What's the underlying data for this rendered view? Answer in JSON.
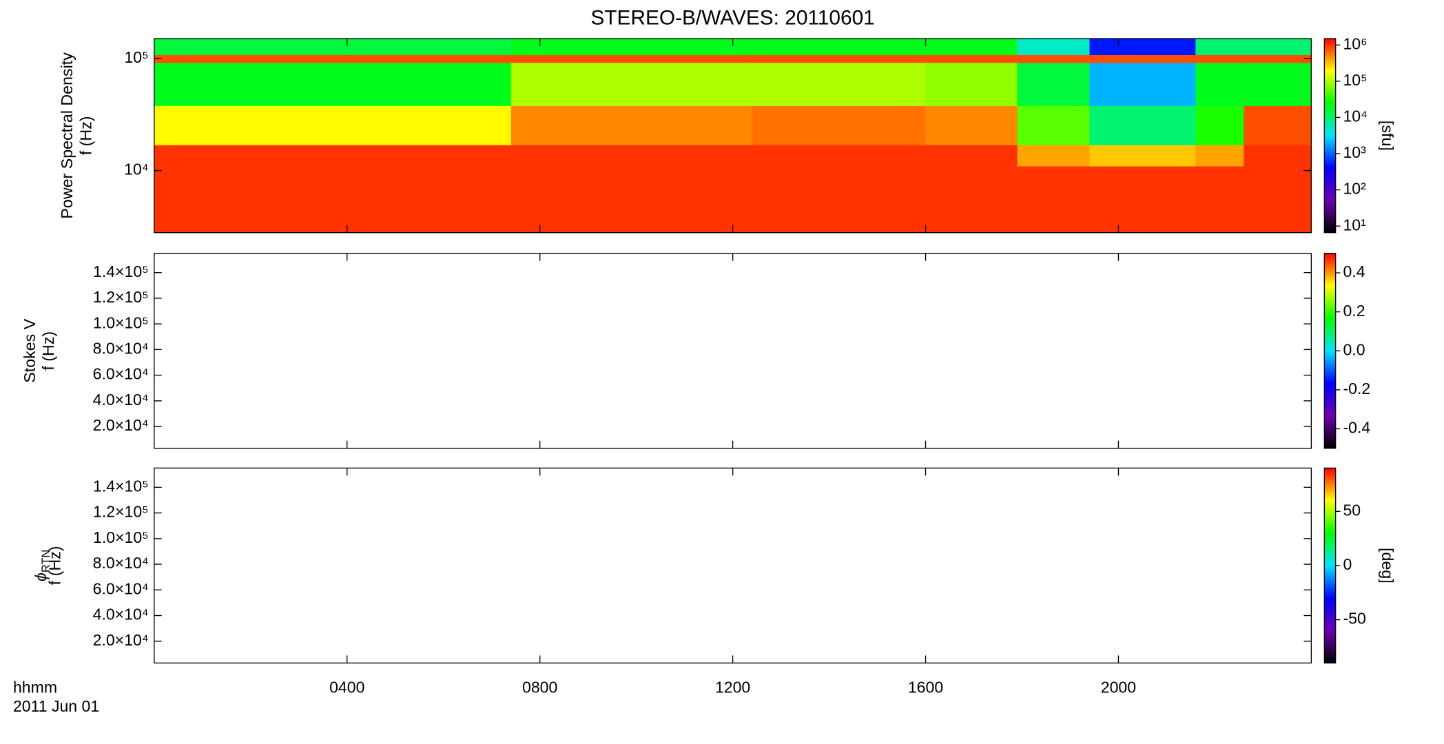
{
  "chart_data": [
    {
      "type": "heatmap",
      "title": "STEREO-B/WAVES: 20110601",
      "ylabel": [
        "Power Spectral Density",
        "f (Hz)"
      ],
      "x_edges": [
        0,
        7.4,
        12.4,
        16,
        17.9,
        19.4,
        21.6,
        22.6,
        24
      ],
      "y_edges": [
        2800,
        8000,
        11000,
        17000,
        38000,
        92000,
        108000,
        150000
      ],
      "z": [
        [
          1000000,
          1000000,
          1000000,
          1000000,
          1000000,
          1000000,
          1000000,
          1000000
        ],
        [
          1000000,
          1000000,
          1000000,
          1000000,
          1000000,
          1000000,
          1000000,
          1000000
        ],
        [
          1000000,
          1000000,
          1000000,
          1000000,
          400000,
          300000,
          400000,
          1000000
        ],
        [
          200000,
          500000,
          600000,
          500000,
          50000,
          10000,
          30000,
          800000
        ],
        [
          20000,
          100000,
          100000,
          80000,
          15000,
          2000,
          20000,
          20000
        ],
        [
          800000,
          800000,
          800000,
          800000,
          800000,
          800000,
          800000,
          800000
        ],
        [
          15000,
          20000,
          20000,
          20000,
          5000,
          500,
          10000,
          10000
        ]
      ],
      "ylog": true,
      "ylim": [
        2800,
        150000
      ],
      "yticks": [
        {
          "value": 10000,
          "label": "10⁴"
        },
        {
          "value": 100000,
          "label": "10⁵"
        }
      ],
      "zlog": true,
      "zlim": [
        6.6,
        1500000
      ],
      "zticks": [
        {
          "value": 10,
          "label": "10¹"
        },
        {
          "value": 100,
          "label": "10²"
        },
        {
          "value": 1000,
          "label": "10³"
        },
        {
          "value": 10000,
          "label": "10⁴"
        },
        {
          "value": 100000,
          "label": "10⁵"
        },
        {
          "value": 1000000,
          "label": "10⁶"
        }
      ],
      "zlabel": "[sfu]",
      "colormap": [
        "#000000",
        "#7000b0",
        "#0000ff",
        "#00e5ff",
        "#00ff00",
        "#ffff00",
        "#ff0000"
      ]
    },
    {
      "type": "heatmap",
      "ylabel": [
        "Stokes V",
        "f (Hz)"
      ],
      "ylog": false,
      "ylim": [
        3000,
        155000
      ],
      "yticks": [
        {
          "value": 20000,
          "label": "2.0×10⁴"
        },
        {
          "value": 40000,
          "label": "4.0×10⁴"
        },
        {
          "value": 60000,
          "label": "6.0×10⁴"
        },
        {
          "value": 80000,
          "label": "8.0×10⁴"
        },
        {
          "value": 100000,
          "label": "1.0×10⁵"
        },
        {
          "value": 120000,
          "label": "1.2×10⁵"
        },
        {
          "value": 140000,
          "label": "1.4×10⁵"
        }
      ],
      "zlog": false,
      "zlim": [
        -0.5,
        0.5
      ],
      "zticks": [
        -0.4,
        -0.2,
        {
          "value": 0,
          "label": "0.0"
        },
        0.2,
        0.4
      ],
      "colormap": [
        "#000000",
        "#7000b0",
        "#0000ff",
        "#00e5ff",
        "#00ff00",
        "#ffff00",
        "#ff0000"
      ]
    },
    {
      "type": "heatmap",
      "ylabel": [
        "ϕ",
        "RTN",
        "f (Hz)"
      ],
      "ylog": false,
      "ylim": [
        3000,
        155000
      ],
      "yticks": [
        {
          "value": 20000,
          "label": "2.0×10⁴"
        },
        {
          "value": 40000,
          "label": "4.0×10⁴"
        },
        {
          "value": 60000,
          "label": "6.0×10⁴"
        },
        {
          "value": 80000,
          "label": "8.0×10⁴"
        },
        {
          "value": 100000,
          "label": "1.0×10⁵"
        },
        {
          "value": 120000,
          "label": "1.2×10⁵"
        },
        {
          "value": 140000,
          "label": "1.4×10⁵"
        }
      ],
      "zlog": false,
      "zlim": [
        -90,
        90
      ],
      "zticks": [
        -50,
        0,
        50
      ],
      "zlabel": "[deg]",
      "xlim": [
        0,
        24
      ],
      "xticks": [
        {
          "value": 4,
          "label": "0400"
        },
        {
          "value": 8,
          "label": "0800"
        },
        {
          "value": 12,
          "label": "1200"
        },
        {
          "value": 16,
          "label": "1600"
        },
        {
          "value": 20,
          "label": "2000"
        }
      ],
      "colormap": [
        "#000000",
        "#7000b0",
        "#0000ff",
        "#00e5ff",
        "#00ff00",
        "#ffff00",
        "#ff0000"
      ]
    }
  ],
  "x_axis": {
    "label": "hhmm",
    "date": "2011 Jun 01"
  }
}
